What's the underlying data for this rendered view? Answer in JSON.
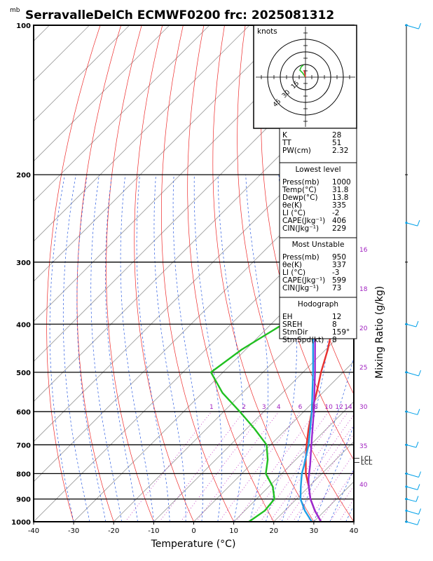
{
  "header": {
    "title": "SerravalleDelCh ECMWF0200 frc: 2025081312",
    "pressure_unit": "mb"
  },
  "chart_data": {
    "type": "line",
    "subtype": "skew-T log-P sounding",
    "xlabel": "Temperature (°C)",
    "right_label": "Mixing Ratio (g/kg)",
    "xlim": [
      -40,
      40
    ],
    "ylim": [
      1000,
      100
    ],
    "x_ticks": [
      -40,
      -30,
      -20,
      -10,
      0,
      10,
      20,
      30,
      40
    ],
    "pressure_levels": [
      100,
      200,
      300,
      400,
      500,
      600,
      700,
      800,
      900,
      1000
    ],
    "series": [
      {
        "color": "#e8312f",
        "points": [
          [
            1000,
            31.8
          ],
          [
            950,
            27.5
          ],
          [
            900,
            23.5
          ],
          [
            850,
            20
          ],
          [
            800,
            16
          ],
          [
            750,
            12.5
          ],
          [
            700,
            9
          ],
          [
            650,
            5.5
          ],
          [
            600,
            2
          ],
          [
            550,
            -1.5
          ],
          [
            500,
            -5.5
          ],
          [
            450,
            -9.5
          ],
          [
            400,
            -14.5
          ],
          [
            350,
            -16
          ],
          [
            300,
            -20
          ],
          [
            250,
            -27
          ],
          [
            200,
            -36
          ],
          [
            150,
            -44
          ],
          [
            100,
            -53
          ]
        ]
      },
      {
        "color": "#21c021",
        "points": [
          [
            1000,
            13.8
          ],
          [
            950,
            15
          ],
          [
            900,
            14.5
          ],
          [
            850,
            11
          ],
          [
            800,
            6
          ],
          [
            750,
            3
          ],
          [
            700,
            -1
          ],
          [
            650,
            -8
          ],
          [
            600,
            -16
          ],
          [
            550,
            -25
          ],
          [
            500,
            -33
          ],
          [
            450,
            -31
          ],
          [
            400,
            -27
          ],
          [
            350,
            -34
          ],
          [
            300,
            -41
          ],
          [
            250,
            -49
          ],
          [
            200,
            -56
          ],
          [
            150,
            -60
          ],
          [
            100,
            -63
          ]
        ]
      },
      {
        "color": "#9b28d2",
        "points": [
          [
            1000,
            31.8
          ],
          [
            950,
            27.5
          ],
          [
            900,
            23.5
          ],
          [
            850,
            20
          ],
          [
            820,
            18
          ],
          [
            770,
            15
          ],
          [
            700,
            10.2
          ],
          [
            600,
            2.5
          ],
          [
            500,
            -7
          ],
          [
            400,
            -19
          ],
          [
            300,
            -36
          ],
          [
            200,
            -58
          ],
          [
            100,
            -85
          ]
        ]
      },
      {
        "color": "#1e9fe6",
        "points": [
          [
            1000,
            29.5
          ],
          [
            950,
            25
          ],
          [
            900,
            21
          ],
          [
            850,
            18
          ],
          [
            800,
            15
          ],
          [
            770,
            13.5
          ],
          [
            700,
            9.5
          ],
          [
            600,
            2
          ],
          [
            500,
            -7.5
          ],
          [
            400,
            -19.5
          ],
          [
            300,
            -37
          ],
          [
            200,
            -59
          ],
          [
            100,
            -87
          ]
        ]
      }
    ],
    "mixing_ratio_labels": [
      "1",
      "2",
      "3",
      "4",
      "6",
      "8",
      "10",
      "12",
      "14",
      "16",
      "18",
      "20",
      "25",
      "30",
      "35",
      "40"
    ],
    "lcl_labels": [
      "LCL",
      "LCL"
    ],
    "wind_profile_color": "#00a0e8",
    "grid": true
  },
  "indices": {
    "rows": [
      {
        "label": "K",
        "value": "28"
      },
      {
        "label": "TT",
        "value": "51"
      },
      {
        "label": "PW(cm)",
        "value": "2.32"
      }
    ]
  },
  "lowest_level": {
    "header": "Lowest level",
    "rows": [
      {
        "label": "Press(mb)",
        "value": "1000"
      },
      {
        "label": "Temp(°C)",
        "value": "31.8"
      },
      {
        "label": "Dewp(°C)",
        "value": "13.8"
      },
      {
        "label": "θe(K)",
        "value": "335"
      },
      {
        "label": "LI (°C)",
        "value": "-2"
      },
      {
        "label": "CAPE(Jkg⁻¹)",
        "value": "406"
      },
      {
        "label": "CIN(Jkg⁻¹)",
        "value": "229"
      }
    ]
  },
  "most_unstable": {
    "header": "Most Unstable",
    "rows": [
      {
        "label": "Press(mb)",
        "value": "950"
      },
      {
        "label": "θe(K)",
        "value": "337"
      },
      {
        "label": "LI (°C)",
        "value": "-3"
      },
      {
        "label": "CAPE(Jkg⁻¹)",
        "value": "599"
      },
      {
        "label": "CIN(Jkg⁻¹)",
        "value": "73"
      }
    ]
  },
  "hodograph_stats": {
    "header": "Hodograph",
    "rows": [
      {
        "label": "EH",
        "value": "12"
      },
      {
        "label": "SREH",
        "value": "8"
      },
      {
        "label": "StmDir",
        "value": "159°"
      },
      {
        "label": "StmSpd(kt)",
        "value": "8"
      }
    ]
  },
  "hodograph": {
    "units_label": "knots",
    "ring_labels": [
      "15",
      "30",
      "45"
    ]
  }
}
